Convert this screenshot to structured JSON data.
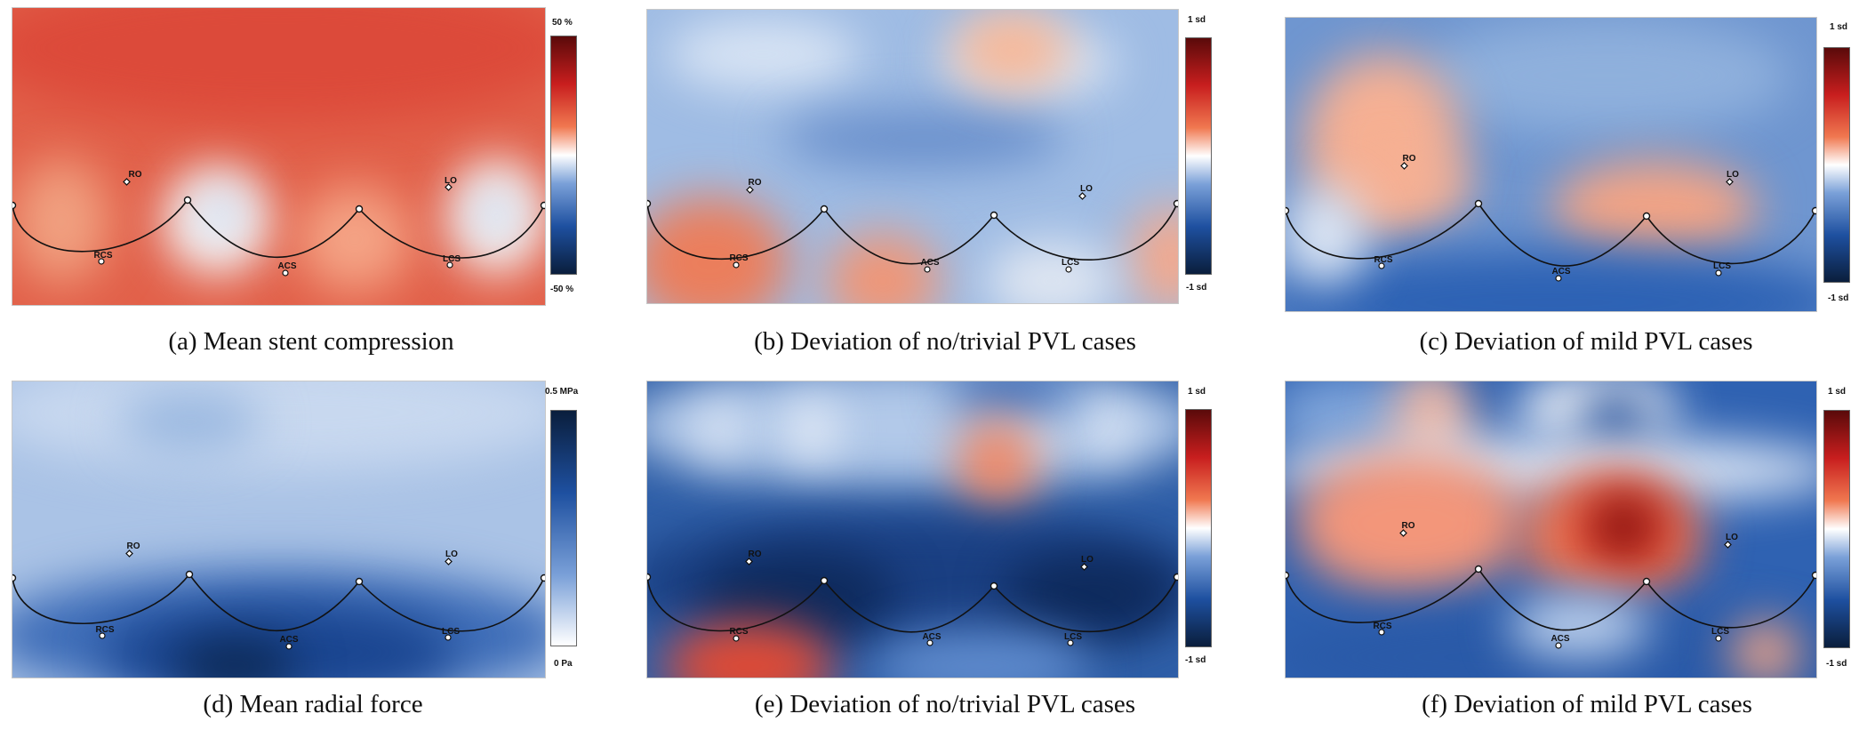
{
  "panels": [
    {
      "id": "a",
      "caption": "(a)  Mean stent compression",
      "scale_top": "50 %",
      "scale_bottom": "-50 %",
      "colormap": "diverging-red-blue",
      "labels": {
        "ro": "RO",
        "lo": "LO",
        "rcs": "RCS",
        "acs": "ACS",
        "lcs": "LCS"
      }
    },
    {
      "id": "b",
      "caption": "(b)  Deviation of no/trivial PVL cases",
      "scale_top": "1 sd",
      "scale_bottom": "-1 sd",
      "colormap": "diverging-red-blue",
      "labels": {
        "ro": "RO",
        "lo": "LO",
        "rcs": "RCS",
        "acs": "ACS",
        "lcs": "LCS"
      }
    },
    {
      "id": "c",
      "caption": "(c)  Deviation of mild PVL cases",
      "scale_top": "1 sd",
      "scale_bottom": "-1 sd",
      "colormap": "diverging-red-blue",
      "labels": {
        "ro": "RO",
        "lo": "LO",
        "rcs": "RCS",
        "acs": "ACS",
        "lcs": "LCS"
      }
    },
    {
      "id": "d",
      "caption": "(d)  Mean radial force",
      "scale_top": "0.5 MPa",
      "scale_bottom": "0 Pa",
      "colormap": "sequential-blue",
      "labels": {
        "ro": "RO",
        "lo": "LO",
        "rcs": "RCS",
        "acs": "ACS",
        "lcs": "LCS"
      }
    },
    {
      "id": "e",
      "caption": "(e)  Deviation of no/trivial PVL cases",
      "scale_top": "1 sd",
      "scale_bottom": "-1 sd",
      "colormap": "diverging-red-blue",
      "labels": {
        "ro": "RO",
        "lo": "LO",
        "rcs": "RCS",
        "acs": "ACS",
        "lcs": "LCS"
      }
    },
    {
      "id": "f",
      "caption": "(f)  Deviation of mild PVL cases",
      "scale_top": "1 sd",
      "scale_bottom": "-1 sd",
      "colormap": "diverging-red-blue",
      "labels": {
        "ro": "RO",
        "lo": "LO",
        "rcs": "RCS",
        "acs": "ACS",
        "lcs": "LCS"
      }
    }
  ],
  "colors": {
    "diverging": [
      "#5a0a0a",
      "#c81e1e",
      "#f07850",
      "#ffffff",
      "#7aa0d8",
      "#1e50a0",
      "#0a1e3c"
    ],
    "sequential": [
      "#0a1e3c",
      "#1e50a0",
      "#7aa0d8",
      "#ffffff"
    ]
  }
}
